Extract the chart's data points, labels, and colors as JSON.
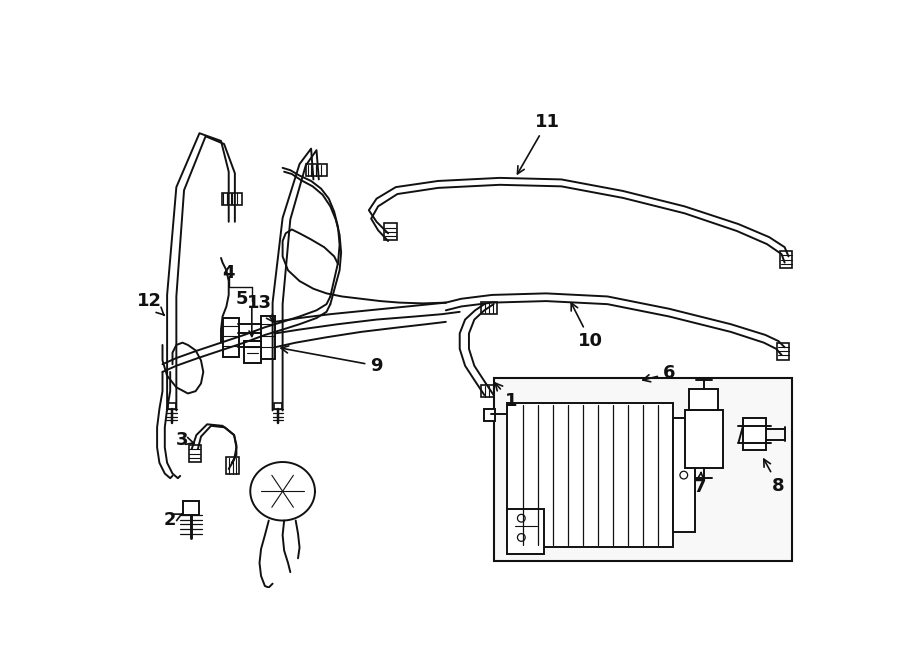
{
  "bg_color": "#ffffff",
  "line_color": "#111111",
  "lw": 1.4,
  "figsize": [
    9.0,
    6.61
  ],
  "dpi": 100,
  "font_size": 13
}
